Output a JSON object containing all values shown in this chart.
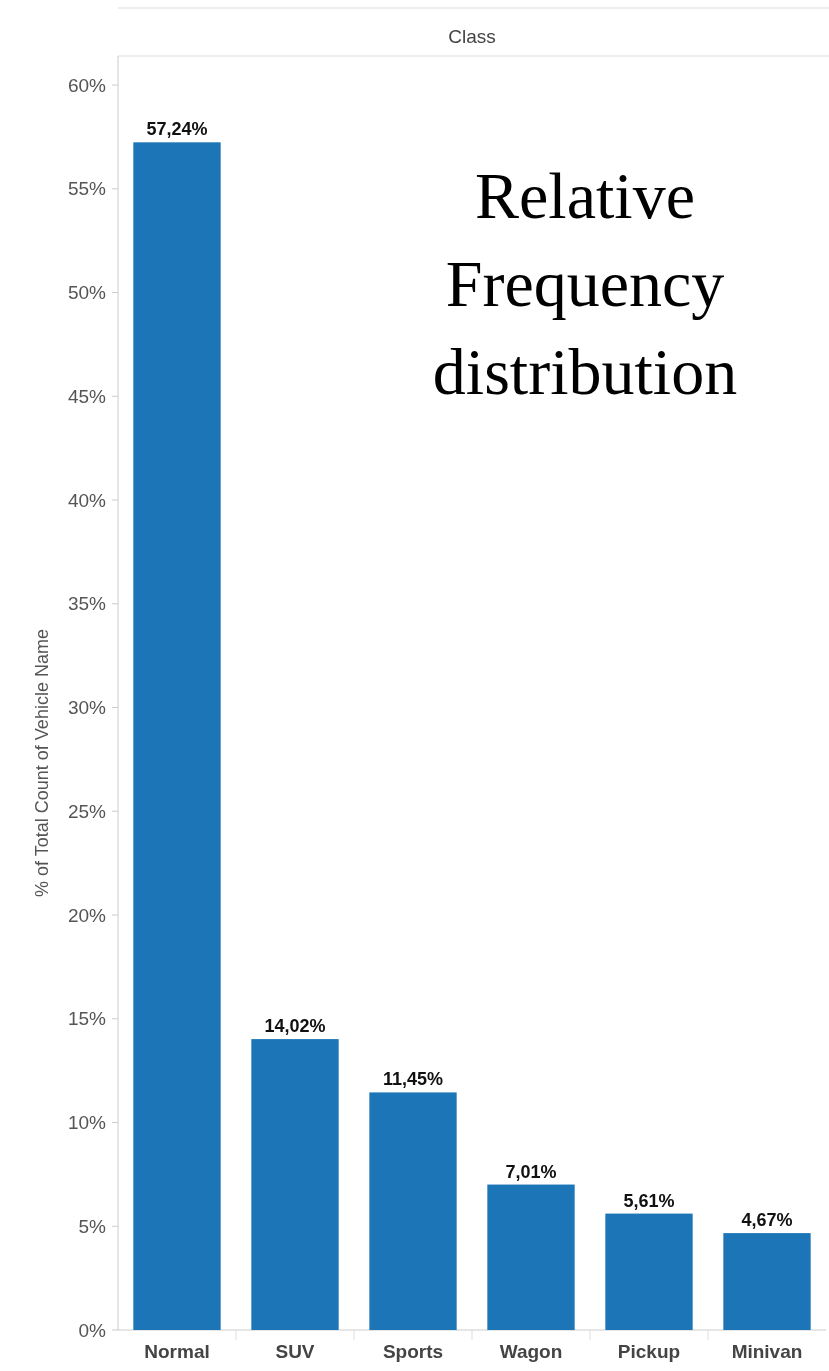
{
  "chart_data": {
    "type": "bar",
    "xlabel": "Class",
    "ylabel": "% of Total Count of Vehicle Name",
    "categories": [
      "Normal",
      "SUV",
      "Sports",
      "Wagon",
      "Pickup",
      "Minivan"
    ],
    "values": [
      57.24,
      14.02,
      11.45,
      7.01,
      5.61,
      4.67
    ],
    "value_labels": [
      "57,24%",
      "14,02%",
      "11,45%",
      "7,01%",
      "5,61%",
      "4,67%"
    ],
    "color": "#1b75b7",
    "ylim": [
      0,
      61.4
    ],
    "yticks": [
      {
        "value": 0,
        "label": "0%"
      },
      {
        "value": 5,
        "label": "5%"
      },
      {
        "value": 10,
        "label": "10%"
      },
      {
        "value": 15,
        "label": "15%"
      },
      {
        "value": 20,
        "label": "20%"
      },
      {
        "value": 25,
        "label": "25%"
      },
      {
        "value": 30,
        "label": "30%"
      },
      {
        "value": 35,
        "label": "35%"
      },
      {
        "value": 40,
        "label": "40%"
      },
      {
        "value": 45,
        "label": "45%"
      },
      {
        "value": 50,
        "label": "50%"
      },
      {
        "value": 55,
        "label": "55%"
      },
      {
        "value": 60,
        "label": "60%"
      }
    ],
    "annotations": [
      "Relative Frequency distribution"
    ],
    "grid": false
  }
}
